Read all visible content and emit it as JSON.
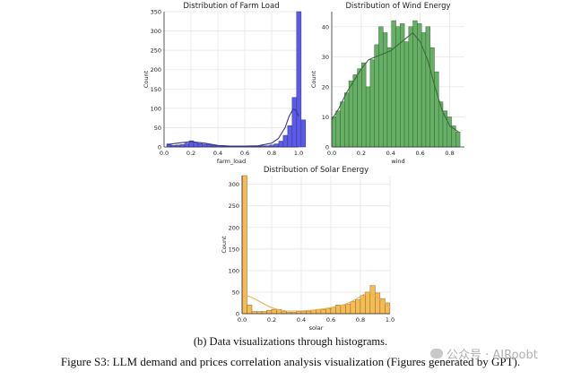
{
  "chart_data": [
    {
      "type": "bar",
      "id": "load",
      "title": "Distribution of Farm Load",
      "xlabel": "farm_load",
      "ylabel": "Count",
      "xlim": [
        0.0,
        1.0
      ],
      "ylim": [
        0,
        350
      ],
      "xticks": [
        "0.0",
        "0.2",
        "0.4",
        "0.6",
        "0.8",
        "1.0"
      ],
      "yticks": [
        "0",
        "50",
        "100",
        "150",
        "200",
        "250",
        "300",
        "350"
      ],
      "bin_start": 0.02,
      "bin_width": 0.0333,
      "values": [
        8,
        4,
        5,
        6,
        10,
        16,
        12,
        9,
        7,
        7,
        4,
        3,
        2,
        2,
        2,
        2,
        2,
        2,
        2,
        2,
        2,
        3,
        3,
        5,
        8,
        15,
        30,
        55,
        128,
        350,
        70
      ],
      "kde_x": [
        0.02,
        0.1,
        0.2,
        0.3,
        0.4,
        0.5,
        0.6,
        0.7,
        0.8,
        0.85,
        0.9,
        0.93,
        0.96,
        0.98,
        1.0
      ],
      "kde_y": [
        6,
        10,
        14,
        10,
        4,
        2,
        2,
        3,
        10,
        22,
        50,
        80,
        98,
        95,
        80
      ],
      "color": "#5b5bea"
    },
    {
      "type": "bar",
      "id": "wind",
      "title": "Distribution of Wind Energy",
      "xlabel": "wind",
      "ylabel": "Count",
      "xlim": [
        0.0,
        0.9
      ],
      "ylim": [
        0,
        45
      ],
      "xticks": [
        "0.0",
        "0.2",
        "0.4",
        "0.6",
        "0.8"
      ],
      "yticks": [
        "0",
        "10",
        "20",
        "30",
        "40"
      ],
      "bin_start": 0.0,
      "bin_width": 0.029,
      "values": [
        10,
        12,
        15,
        18,
        22,
        24,
        26,
        28,
        20,
        29,
        34,
        40,
        38,
        33,
        42,
        40,
        41,
        35,
        40,
        42,
        41,
        38,
        40,
        33,
        25,
        15,
        12,
        10,
        7,
        5
      ],
      "kde_x": [
        0.0,
        0.05,
        0.1,
        0.15,
        0.2,
        0.25,
        0.3,
        0.35,
        0.4,
        0.45,
        0.5,
        0.55,
        0.6,
        0.65,
        0.7,
        0.75,
        0.8,
        0.86
      ],
      "kde_y": [
        9,
        13,
        18,
        22,
        26,
        29,
        30,
        31,
        32,
        34,
        36,
        38,
        35,
        29,
        20,
        12,
        7,
        5
      ],
      "color": "#66b066"
    },
    {
      "type": "bar",
      "id": "solar",
      "title": "Distribution of Solar Energy",
      "xlabel": "solar",
      "ylabel": "Count",
      "xlim": [
        0.0,
        1.0
      ],
      "ylim": [
        0,
        320
      ],
      "xticks": [
        "0.0",
        "0.2",
        "0.4",
        "0.6",
        "0.8",
        "1.0"
      ],
      "yticks": [
        "0",
        "50",
        "100",
        "150",
        "200",
        "250",
        "300"
      ],
      "bin_start": 0.0,
      "bin_width": 0.0333,
      "values": [
        320,
        20,
        5,
        5,
        5,
        8,
        10,
        10,
        5,
        3,
        3,
        5,
        5,
        6,
        8,
        10,
        10,
        12,
        15,
        20,
        20,
        22,
        28,
        32,
        42,
        50,
        65,
        48,
        35,
        25
      ],
      "kde_x": [
        0.0,
        0.05,
        0.1,
        0.15,
        0.2,
        0.25,
        0.3,
        0.4,
        0.5,
        0.6,
        0.7,
        0.75,
        0.8,
        0.85,
        0.9,
        0.95,
        1.0
      ],
      "kde_y": [
        42,
        40,
        32,
        22,
        14,
        9,
        6,
        6,
        9,
        14,
        22,
        30,
        40,
        50,
        42,
        28,
        15
      ],
      "color": "#f5bb55"
    }
  ],
  "captions": {
    "sub": "(b) Data visualizations through histograms.",
    "main": "Figure S3: LLM demand and prices correlation analysis visualization (Figures generated by GPT)."
  },
  "watermark": "公众号 · AIRoobt"
}
